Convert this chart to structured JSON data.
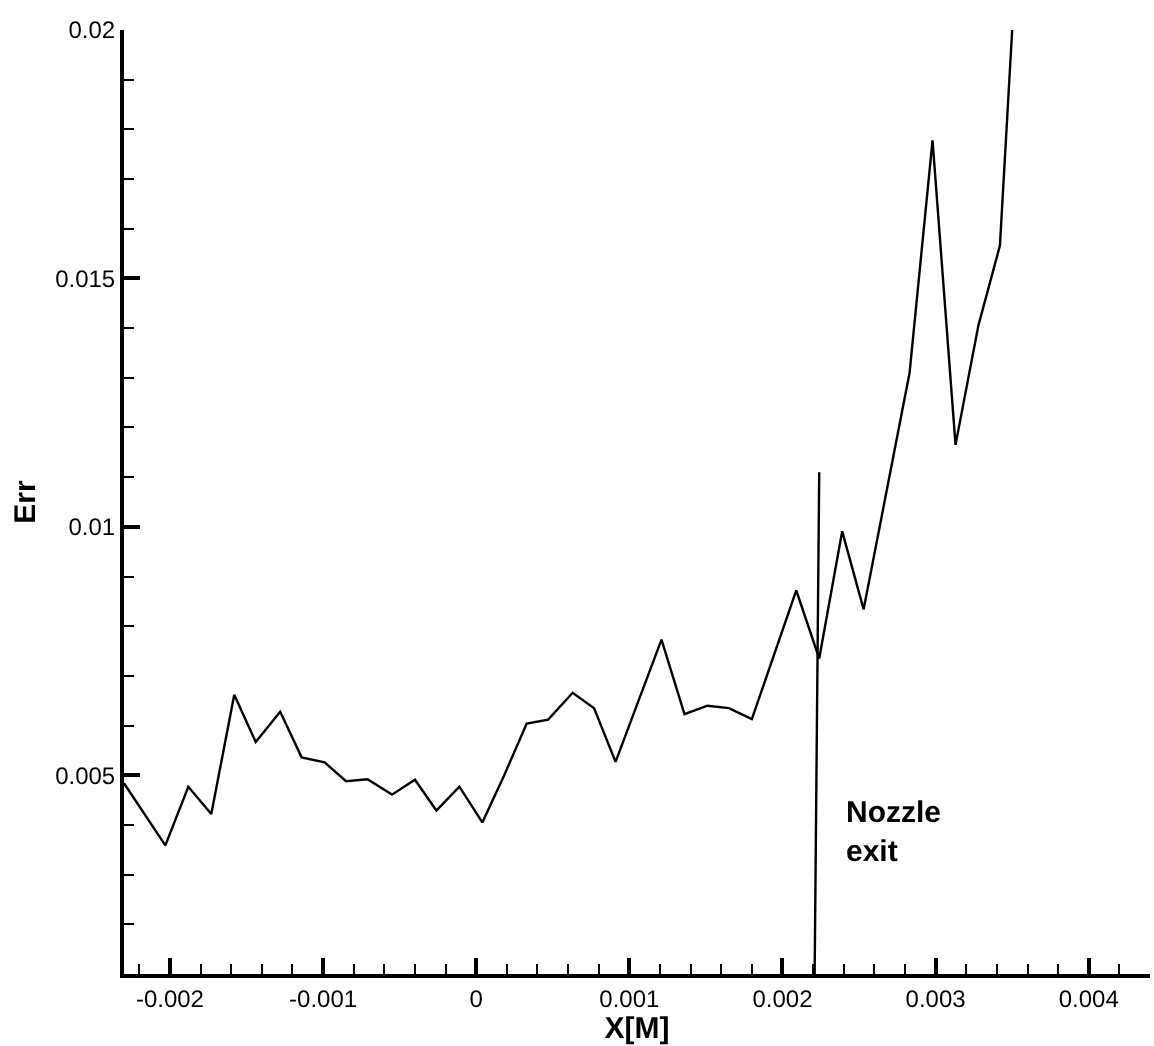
{
  "chart_data": {
    "type": "line",
    "xlabel": "X[M]",
    "ylabel": "Err",
    "x": [
      -0.0023,
      -0.00203,
      -0.00188,
      -0.00173,
      -0.00158,
      -0.00144,
      -0.00128,
      -0.00114,
      -0.00099,
      -0.00085,
      -0.00071,
      -0.00055,
      -0.0004,
      -0.00026,
      -0.00011,
      4e-05,
      0.00018,
      0.00033,
      0.00047,
      0.00063,
      0.00077,
      0.00091,
      0.00121,
      0.00136,
      0.00151,
      0.00165,
      0.0018,
      0.00209,
      0.00224,
      0.00239,
      0.00253,
      0.00283,
      0.00298,
      0.00313,
      0.00328,
      0.00342,
      0.0035
    ],
    "series": [
      {
        "color": "#000000",
        "values": [
          0.00484,
          0.00359,
          0.00477,
          0.00422,
          0.00662,
          0.00567,
          0.00628,
          0.00536,
          0.00526,
          0.00488,
          0.00492,
          0.00461,
          0.00491,
          0.00429,
          0.00477,
          0.00405,
          0.00498,
          0.00604,
          0.00612,
          0.00666,
          0.00635,
          0.00527,
          0.00773,
          0.00623,
          0.0064,
          0.00635,
          0.00613,
          0.00872,
          0.00735,
          0.00991,
          0.00834,
          0.0131,
          0.01778,
          0.01165,
          0.01406,
          0.01566,
          0.02
        ]
      },
      {
        "color": "#000000",
        "x": [
          0.00221,
          0.00224
        ],
        "values": [
          0.001,
          0.0111
        ]
      }
    ],
    "annotations": [
      "Nozzle\nexit"
    ],
    "xlim": [
      -0.0023,
      0.0044
    ],
    "ylim": [
      0.001,
      0.02
    ],
    "xticks": [
      -0.002,
      -0.001,
      0,
      0.001,
      0.002,
      0.003,
      0.004,
      {
        "value": -0.0022,
        "label": null
      },
      {
        "value": -0.0018,
        "label": null
      },
      {
        "value": -0.0016,
        "label": null
      },
      {
        "value": -0.0014,
        "label": null
      },
      {
        "value": -0.0012,
        "label": null
      },
      {
        "value": -0.0008,
        "label": null
      },
      {
        "value": -0.0006,
        "label": null
      },
      {
        "value": -0.0004,
        "label": null
      },
      {
        "value": -0.0002,
        "label": null
      },
      {
        "value": 0.0002,
        "label": null
      },
      {
        "value": 0.0004,
        "label": null
      },
      {
        "value": 0.0006,
        "label": null
      },
      {
        "value": 0.0008,
        "label": null
      },
      {
        "value": 0.0012,
        "label": null
      },
      {
        "value": 0.0014,
        "label": null
      },
      {
        "value": 0.0016,
        "label": null
      },
      {
        "value": 0.0018,
        "label": null
      },
      {
        "value": 0.0022,
        "label": null
      },
      {
        "value": 0.0024,
        "label": null
      },
      {
        "value": 0.0026,
        "label": null
      },
      {
        "value": 0.0028,
        "label": null
      },
      {
        "value": 0.0032,
        "label": null
      },
      {
        "value": 0.0034,
        "label": null
      },
      {
        "value": 0.0036,
        "label": null
      },
      {
        "value": 0.0038,
        "label": null
      },
      {
        "value": 0.0042,
        "label": null
      },
      {
        "value": 0.0044,
        "label": null
      }
    ],
    "yticks": [
      0.005,
      0.01,
      0.015,
      0.02,
      {
        "value": 0.002,
        "label": null
      },
      {
        "value": 0.003,
        "label": null
      },
      {
        "value": 0.004,
        "label": null
      },
      {
        "value": 0.006,
        "label": null
      },
      {
        "value": 0.007,
        "label": null
      },
      {
        "value": 0.008,
        "label": null
      },
      {
        "value": 0.009,
        "label": null
      },
      {
        "value": 0.011,
        "label": null
      },
      {
        "value": 0.012,
        "label": null
      },
      {
        "value": 0.013,
        "label": null
      },
      {
        "value": 0.014,
        "label": null
      },
      {
        "value": 0.016,
        "label": null
      },
      {
        "value": 0.017,
        "label": null
      },
      {
        "value": 0.018,
        "label": null
      },
      {
        "value": 0.019,
        "label": null
      }
    ],
    "marker": "none",
    "line_style": "solid"
  }
}
